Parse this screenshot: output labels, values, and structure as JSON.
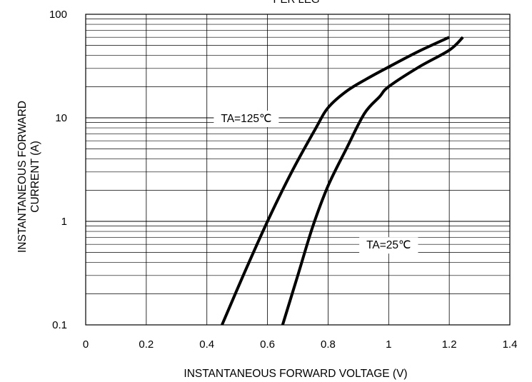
{
  "chart_data": {
    "type": "line",
    "title": "PER LEG",
    "xlabel": "INSTANTANEOUS FORWARD VOLTAGE (V)",
    "ylabel_lines": [
      "INSTANTANEOUS FORWARD",
      "CURRENT (A)"
    ],
    "xlim": [
      0,
      1.4
    ],
    "ylim": [
      0.1,
      100
    ],
    "yscale": "log",
    "grid": true,
    "x_ticks": [
      0,
      0.2,
      0.4,
      0.6,
      0.8,
      1,
      1.2,
      1.4
    ],
    "x_tick_labels": [
      "0",
      "0.2",
      "0.4",
      "0.6",
      "0.8",
      "1",
      "1.2",
      "1.4"
    ],
    "y_ticks": [
      0.1,
      1,
      10,
      100
    ],
    "y_tick_labels": [
      "0.1",
      "1",
      "10",
      "100"
    ],
    "series": [
      {
        "name": "TA=125℃",
        "x": [
          0.45,
          0.52,
          0.6,
          0.68,
          0.76,
          0.8,
          0.86,
          0.93,
          1.0,
          1.1,
          1.2
        ],
        "y": [
          0.1,
          0.3,
          1.0,
          3.0,
          8.0,
          12.5,
          18.0,
          24.0,
          31.0,
          44.0,
          60.0
        ]
      },
      {
        "name": "TA=25℃",
        "x": [
          0.65,
          0.7,
          0.75,
          0.8,
          0.86,
          0.92,
          0.97,
          1.0,
          1.1,
          1.2,
          1.245
        ],
        "y": [
          0.1,
          0.3,
          0.9,
          2.2,
          5.0,
          11.0,
          16.0,
          20.0,
          31.0,
          45.0,
          60.0
        ]
      }
    ],
    "annotations": [
      {
        "series": 0,
        "text": "TA=125℃",
        "x": 0.53,
        "y": 10.0
      },
      {
        "series": 1,
        "text": "TA=25℃",
        "x": 1.0,
        "y": 0.6
      }
    ],
    "colors": {
      "line": "#000000",
      "grid": "#000000",
      "frame": "#000000"
    }
  }
}
